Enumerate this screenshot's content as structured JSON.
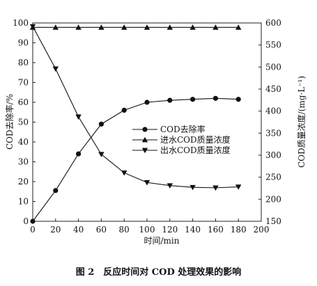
{
  "chart_data": {
    "type": "line",
    "x": [
      0,
      20,
      40,
      60,
      80,
      100,
      120,
      140,
      160,
      180
    ],
    "xlabel": "时间/min",
    "xlim": [
      0,
      200
    ],
    "xticks": [
      0,
      20,
      40,
      60,
      80,
      100,
      120,
      140,
      160,
      180,
      200
    ],
    "ylabel_left": "COD去除率/%",
    "ylim_left": [
      0,
      100
    ],
    "yticks_left": [
      0,
      10,
      20,
      30,
      40,
      50,
      60,
      70,
      80,
      90,
      100
    ],
    "ylabel_right": "COD质量浓度/(mg·L⁻¹)",
    "ylim_right": [
      150,
      600
    ],
    "yticks_right": [
      150,
      200,
      250,
      300,
      350,
      400,
      450,
      500,
      550,
      600
    ],
    "grid": false,
    "legend_position": "center-right",
    "series": [
      {
        "name": "COD去除率",
        "axis": "left",
        "marker": "circle",
        "values": [
          0,
          15.5,
          34,
          49,
          56,
          60,
          61,
          61.5,
          62,
          61.5
        ]
      },
      {
        "name": "进水COD质量浓度",
        "axis": "right",
        "marker": "triangle-up",
        "values": [
          590,
          590,
          590,
          590,
          590,
          590,
          590,
          590,
          590,
          590
        ]
      },
      {
        "name": "出水COD质量浓度",
        "axis": "right",
        "marker": "triangle-down",
        "values": [
          592,
          496,
          387,
          302,
          260,
          238,
          231,
          227,
          226,
          228
        ]
      }
    ]
  },
  "caption": "图 2　反应时间对 COD 处理效果的影响"
}
